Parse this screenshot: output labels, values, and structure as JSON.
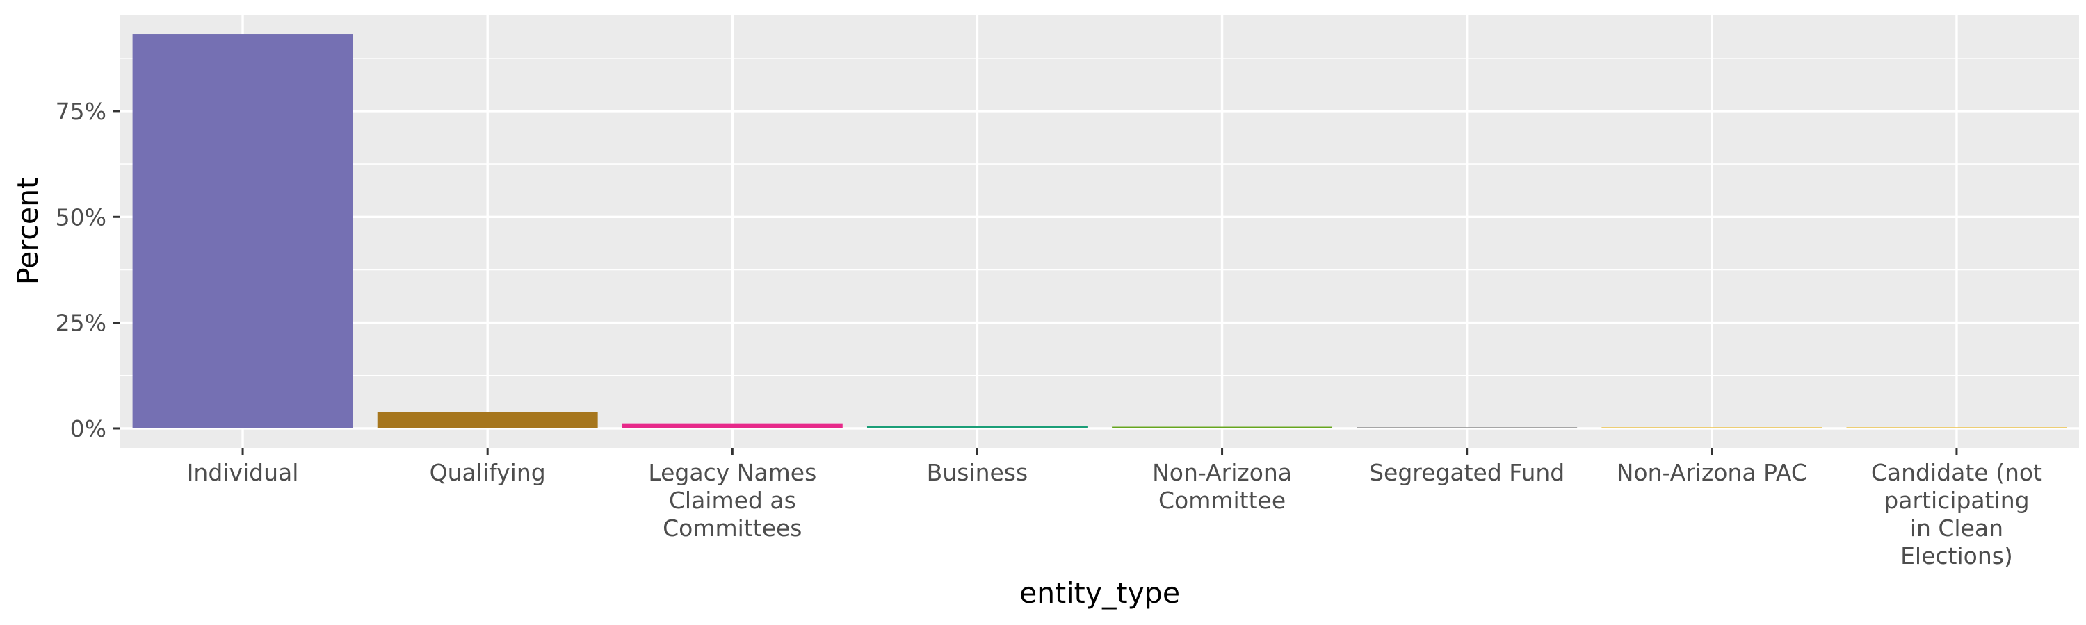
{
  "chart_data": {
    "type": "bar",
    "title": "",
    "xlabel": "entity_type",
    "ylabel": "Percent",
    "categories": [
      "Individual",
      "Qualifying",
      "Legacy Names Claimed as Committees",
      "Business",
      "Non-Arizona Committee",
      "Segregated Fund",
      "Non-Arizona PAC",
      "Candidate (not participating in Clean Elections)"
    ],
    "category_lines": [
      [
        "Individual"
      ],
      [
        "Qualifying"
      ],
      [
        "Legacy Names",
        "Claimed as",
        "Committees"
      ],
      [
        "Business"
      ],
      [
        "Non-Arizona",
        "Committee"
      ],
      [
        "Segregated Fund"
      ],
      [
        "Non-Arizona PAC"
      ],
      [
        "Candidate (not",
        "participating",
        "in Clean",
        "Elections)"
      ]
    ],
    "values": [
      93.2,
      3.9,
      1.2,
      0.6,
      0.4,
      0.25,
      0.15,
      0.05
    ],
    "colors": [
      "#7570b3",
      "#a6761d",
      "#e7298a",
      "#1b9e77",
      "#66a61e",
      "#666666",
      "#e6ab02",
      "#e6ab02"
    ],
    "ylim": [
      -4.6,
      97.8
    ],
    "yticks": [
      0,
      25,
      50,
      75
    ],
    "ytick_labels": [
      "0%",
      "25%",
      "50%",
      "75%"
    ],
    "grid": true,
    "legend": "none"
  }
}
